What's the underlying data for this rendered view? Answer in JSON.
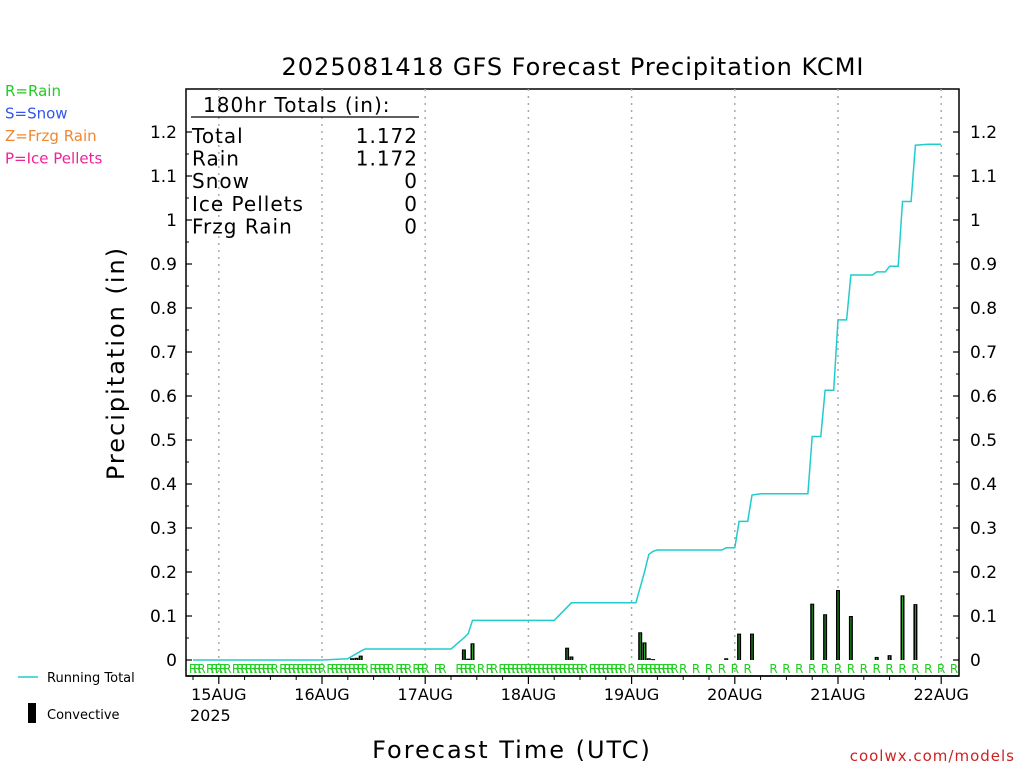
{
  "title": "2025081418 GFS Forecast Precipitation KCMI",
  "legend_types": [
    {
      "text": "R=Rain",
      "color": "#22cc22"
    },
    {
      "text": "S=Snow",
      "color": "#3355ee"
    },
    {
      "text": "Z=Frzg Rain",
      "color": "#ee8833"
    },
    {
      "text": "P=Ice Pellets",
      "color": "#ee2299"
    }
  ],
  "totals_box": {
    "heading": "180hr Totals (in):",
    "rows": [
      {
        "label": "Total",
        "value": "1.172"
      },
      {
        "label": "Rain",
        "value": "1.172"
      },
      {
        "label": "Snow",
        "value": "0"
      },
      {
        "label": "Ice Pellets",
        "value": "0"
      },
      {
        "label": "Frzg Rain",
        "value": "0"
      }
    ]
  },
  "legend_lines": {
    "running_total": "Running Total",
    "convective": "Convective"
  },
  "ylabel": "Precipitation (in)",
  "xlabel": "Forecast Time (UTC)",
  "year_label": "2025",
  "watermark": "coolwx.com/models",
  "colors": {
    "running_total": "#22cccc",
    "bar": "#000000",
    "bar_fill": "#22aa22",
    "rain": "#22cc22"
  },
  "chart_data": {
    "type": "bar",
    "x_unit": "hours since 2025-08-14 18 UTC",
    "xlim": [
      0,
      180
    ],
    "ylim": [
      0,
      1.25
    ],
    "yticks": [
      "0",
      "0.1",
      "0.2",
      "0.3",
      "0.4",
      "0.5",
      "0.6",
      "0.7",
      "0.8",
      "0.9",
      "1",
      "1.1",
      "1.2"
    ],
    "xticks": [
      {
        "x": 6,
        "label": "15AUG"
      },
      {
        "x": 30,
        "label": "16AUG"
      },
      {
        "x": 54,
        "label": "17AUG"
      },
      {
        "x": 78,
        "label": "18AUG"
      },
      {
        "x": 102,
        "label": "19AUG"
      },
      {
        "x": 126,
        "label": "20AUG"
      },
      {
        "x": 150,
        "label": "21AUG"
      },
      {
        "x": 174,
        "label": "22AUG"
      }
    ],
    "grid": "vertical dotted at day boundaries",
    "series": [
      {
        "name": "Running Total",
        "type": "line",
        "points": [
          [
            0,
            0
          ],
          [
            30,
            0
          ],
          [
            36,
            0.003
          ],
          [
            39,
            0.02
          ],
          [
            40,
            0.025
          ],
          [
            60,
            0.025
          ],
          [
            63,
            0.05
          ],
          [
            64,
            0.06
          ],
          [
            65,
            0.09
          ],
          [
            84,
            0.09
          ],
          [
            87,
            0.12
          ],
          [
            88,
            0.13
          ],
          [
            103,
            0.13
          ],
          [
            105,
            0.2
          ],
          [
            106,
            0.24
          ],
          [
            107,
            0.247
          ],
          [
            108,
            0.25
          ],
          [
            123,
            0.25
          ],
          [
            124,
            0.255
          ],
          [
            126,
            0.255
          ],
          [
            127,
            0.315
          ],
          [
            129,
            0.315
          ],
          [
            130,
            0.375
          ],
          [
            132,
            0.378
          ],
          [
            143,
            0.378
          ],
          [
            144,
            0.508
          ],
          [
            146,
            0.508
          ],
          [
            147,
            0.613
          ],
          [
            149,
            0.613
          ],
          [
            150,
            0.773
          ],
          [
            152,
            0.773
          ],
          [
            153,
            0.875
          ],
          [
            158,
            0.875
          ],
          [
            159,
            0.882
          ],
          [
            161,
            0.882
          ],
          [
            162,
            0.895
          ],
          [
            164,
            0.895
          ],
          [
            165,
            1.042
          ],
          [
            167,
            1.042
          ],
          [
            168,
            1.17
          ],
          [
            171,
            1.172
          ],
          [
            174,
            1.172
          ]
        ]
      },
      {
        "name": "Convective",
        "type": "bar",
        "points": [
          [
            37,
            0.004
          ],
          [
            38,
            0.005
          ],
          [
            39,
            0.01
          ],
          [
            63,
            0.024
          ],
          [
            65,
            0.038
          ],
          [
            64,
            0.003
          ],
          [
            87,
            0.028
          ],
          [
            88,
            0.008
          ],
          [
            104,
            0.063
          ],
          [
            105,
            0.04
          ],
          [
            106,
            0.004
          ],
          [
            107,
            0.002
          ],
          [
            124,
            0.004
          ],
          [
            127,
            0.06
          ],
          [
            130,
            0.06
          ],
          [
            144,
            0.128
          ],
          [
            147,
            0.104
          ],
          [
            150,
            0.159
          ],
          [
            153,
            0.1
          ],
          [
            159,
            0.007
          ],
          [
            162,
            0.011
          ],
          [
            165,
            0.147
          ],
          [
            168,
            0.127
          ]
        ]
      }
    ],
    "ptype_markers": {
      "letter": "R",
      "hours": [
        0,
        1,
        2,
        4,
        5,
        6,
        7,
        8,
        10,
        11,
        12,
        13,
        14,
        15,
        16,
        17,
        18,
        19,
        21,
        22,
        23,
        24,
        25,
        26,
        27,
        28,
        29,
        30,
        32,
        33,
        34,
        35,
        36,
        37,
        38,
        39,
        40,
        42,
        43,
        44,
        45,
        46,
        48,
        49,
        50,
        52,
        53,
        54,
        57,
        58,
        62,
        63,
        64,
        65,
        67,
        69,
        70,
        72,
        73,
        74,
        75,
        76,
        77,
        78,
        79,
        80,
        81,
        82,
        83,
        84,
        85,
        86,
        87,
        88,
        89,
        90,
        91,
        93,
        94,
        95,
        96,
        97,
        98,
        99,
        100,
        102,
        104,
        105,
        106,
        107,
        108,
        109,
        110,
        111,
        112,
        114,
        117,
        120,
        123,
        126,
        129,
        135,
        138,
        141,
        144,
        147,
        150,
        153,
        156,
        159,
        162,
        165,
        168,
        171,
        174,
        177
      ]
    }
  }
}
